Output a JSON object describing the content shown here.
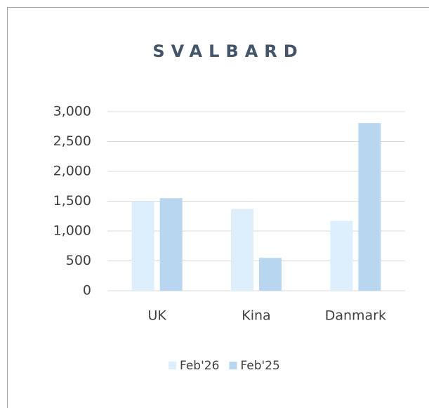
{
  "chart_data": {
    "type": "bar",
    "title": "SVALBARD",
    "categories": [
      "UK",
      "Kina",
      "Danmark"
    ],
    "series": [
      {
        "name": "Feb'26",
        "color": "#ddeefc",
        "values": [
          1500,
          1370,
          1170
        ]
      },
      {
        "name": "Feb'25",
        "color": "#b8d6f0",
        "values": [
          1550,
          550,
          2810
        ]
      }
    ],
    "ylim": [
      0,
      3000
    ],
    "yticks": [
      0,
      500,
      {
        "value": 1000,
        "label": "1,000"
      },
      {
        "value": 1500,
        "label": "1,500"
      },
      {
        "value": 2000,
        "label": "2,000"
      },
      {
        "value": 2500,
        "label": "2,500"
      },
      {
        "value": 3000,
        "label": "3,000"
      }
    ],
    "grid": true,
    "legend": "bottom"
  }
}
